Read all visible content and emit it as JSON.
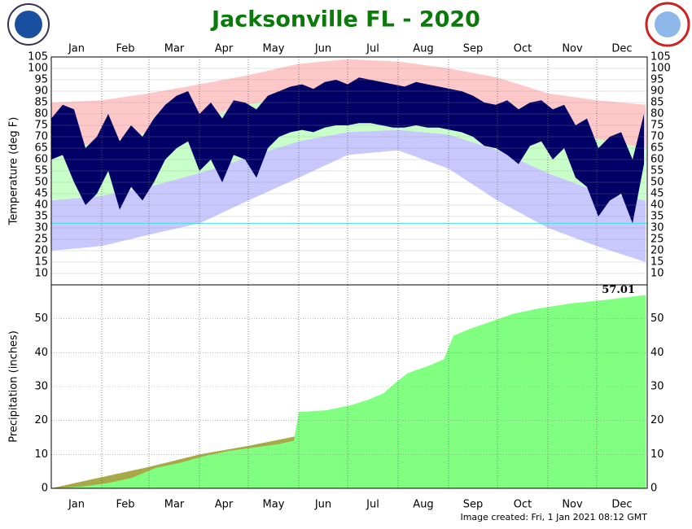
{
  "title": "Jacksonville FL - 2020",
  "footer": "Image created: Fri, 1 Jan 2021 08:12 GMT",
  "chart_data": [
    {
      "type": "band",
      "ylabel": "Temperature (deg F)",
      "categories": [
        "Jan",
        "Feb",
        "Mar",
        "Apr",
        "May",
        "Jun",
        "Jul",
        "Aug",
        "Sep",
        "Oct",
        "Nov",
        "Dec"
      ],
      "xlim": [
        1,
        367
      ],
      "xticks": [
        1,
        32,
        61,
        92,
        122,
        153,
        183,
        214,
        245,
        275,
        306,
        336
      ],
      "ylim": [
        5,
        105
      ],
      "yticks": [
        10,
        15,
        20,
        25,
        30,
        35,
        40,
        45,
        50,
        55,
        60,
        65,
        70,
        75,
        80,
        85,
        90,
        95,
        100,
        105
      ],
      "reference_line": 32,
      "reference_color": "#40e0e0",
      "normals": {
        "x": [
          1,
          32,
          61,
          92,
          122,
          153,
          183,
          214,
          245,
          275,
          306,
          336,
          366
        ],
        "record_high": [
          85,
          86,
          89,
          93,
          97,
          102,
          104,
          103,
          100,
          96,
          89,
          86,
          84
        ],
        "normal_high": [
          65,
          67,
          72,
          78,
          84,
          89,
          92,
          92,
          89,
          83,
          76,
          69,
          65
        ],
        "normal_low": [
          42,
          44,
          48,
          54,
          61,
          68,
          72,
          73,
          71,
          64,
          54,
          46,
          42
        ],
        "record_low": [
          20,
          22,
          27,
          32,
          42,
          52,
          62,
          64,
          56,
          42,
          30,
          22,
          15
        ],
        "colors": {
          "record": "#ffc8c8",
          "normal": "#c8ffc8",
          "low": "#c8c8ff"
        }
      },
      "observed": {
        "color": "#000066",
        "x": [
          1,
          8,
          15,
          22,
          29,
          36,
          43,
          50,
          57,
          64,
          71,
          78,
          85,
          92,
          99,
          106,
          113,
          120,
          127,
          134,
          141,
          148,
          155,
          162,
          169,
          176,
          183,
          190,
          197,
          204,
          211,
          218,
          225,
          232,
          239,
          246,
          253,
          260,
          267,
          274,
          281,
          288,
          295,
          302,
          309,
          316,
          323,
          330,
          337,
          344,
          351,
          358,
          365
        ],
        "high": [
          78,
          84,
          82,
          65,
          70,
          80,
          68,
          75,
          70,
          78,
          84,
          88,
          90,
          80,
          85,
          78,
          86,
          85,
          82,
          88,
          90,
          92,
          93,
          91,
          94,
          95,
          93,
          96,
          95,
          94,
          93,
          92,
          94,
          93,
          92,
          91,
          90,
          88,
          85,
          84,
          86,
          82,
          85,
          86,
          82,
          84,
          75,
          78,
          65,
          70,
          72,
          60,
          80
        ],
        "low": [
          60,
          62,
          50,
          40,
          45,
          55,
          38,
          48,
          42,
          50,
          60,
          65,
          68,
          55,
          60,
          50,
          62,
          60,
          52,
          65,
          70,
          72,
          73,
          72,
          74,
          75,
          75,
          76,
          76,
          75,
          74,
          74,
          75,
          74,
          74,
          73,
          72,
          70,
          66,
          65,
          62,
          58,
          66,
          68,
          60,
          65,
          52,
          48,
          35,
          42,
          45,
          32,
          58
        ]
      }
    },
    {
      "type": "area",
      "ylabel": "Precipitation (inches)",
      "categories": [
        "Jan",
        "Feb",
        "Mar",
        "Apr",
        "May",
        "Jun",
        "Jul",
        "Aug",
        "Sep",
        "Oct",
        "Nov",
        "Dec"
      ],
      "xlim": [
        1,
        367
      ],
      "xticks": [
        1,
        32,
        61,
        92,
        122,
        153,
        183,
        214,
        245,
        275,
        306,
        336
      ],
      "ylim": [
        0,
        60
      ],
      "yticks": [
        0,
        10,
        20,
        30,
        40,
        50
      ],
      "normal": {
        "color": "#a8a848",
        "x": [
          1,
          32,
          61,
          92,
          122,
          153,
          183,
          214,
          245,
          275,
          306,
          336,
          366
        ],
        "values": [
          0,
          3.3,
          6.3,
          10,
          12.5,
          15.5,
          21,
          27.5,
          34,
          39.5,
          42,
          44.5,
          47
        ]
      },
      "observed": {
        "color": "#80ff80",
        "x": [
          1,
          20,
          35,
          50,
          65,
          80,
          95,
          110,
          125,
          140,
          150,
          153,
          170,
          185,
          195,
          205,
          212,
          220,
          232,
          242,
          248,
          258,
          270,
          285,
          300,
          320,
          340,
          366
        ],
        "values": [
          0,
          0.5,
          1.5,
          3,
          6,
          7.5,
          9.5,
          11,
          12,
          13,
          14,
          22.5,
          23,
          24.5,
          26,
          28,
          31,
          34,
          36,
          38,
          45,
          47,
          49,
          51.5,
          53,
          54.5,
          55.5,
          57.01
        ]
      }
    }
  ]
}
